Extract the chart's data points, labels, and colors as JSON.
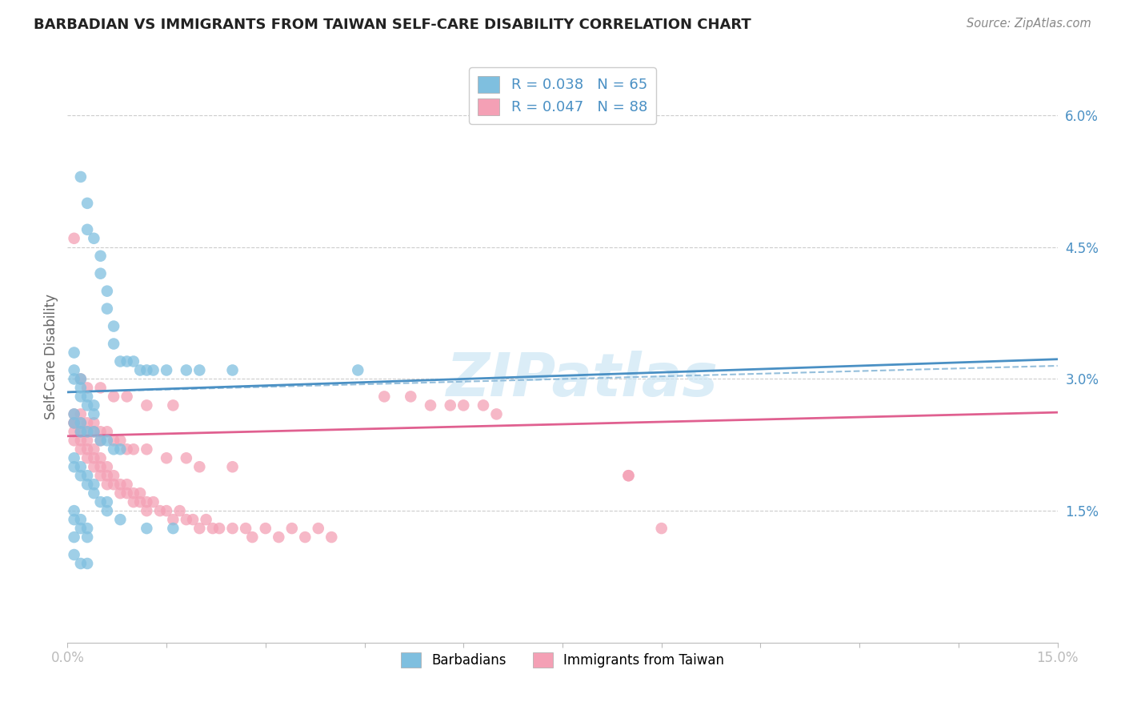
{
  "title": "BARBADIAN VS IMMIGRANTS FROM TAIWAN SELF-CARE DISABILITY CORRELATION CHART",
  "source": "Source: ZipAtlas.com",
  "ylabel": "Self-Care Disability",
  "right_yticks": [
    "6.0%",
    "4.5%",
    "3.0%",
    "1.5%"
  ],
  "right_ytick_vals": [
    0.06,
    0.045,
    0.03,
    0.015
  ],
  "legend_label1": "R = 0.038   N = 65",
  "legend_label2": "R = 0.047   N = 88",
  "color_blue": "#7fbfdf",
  "color_pink": "#f4a0b5",
  "line_blue": "#4a90c4",
  "line_pink": "#e06090",
  "line_dashed_color": "#8ab8d8",
  "text_color_blue": "#4a90c4",
  "background": "#ffffff",
  "xlim": [
    0.0,
    0.15
  ],
  "ylim": [
    0.0,
    0.065
  ],
  "barbadian_x": [
    0.002,
    0.003,
    0.003,
    0.004,
    0.005,
    0.005,
    0.006,
    0.006,
    0.007,
    0.007,
    0.008,
    0.009,
    0.01,
    0.011,
    0.012,
    0.013,
    0.015,
    0.018,
    0.02,
    0.025,
    0.001,
    0.001,
    0.001,
    0.002,
    0.002,
    0.002,
    0.003,
    0.003,
    0.004,
    0.004,
    0.001,
    0.001,
    0.002,
    0.002,
    0.003,
    0.004,
    0.005,
    0.006,
    0.007,
    0.008,
    0.001,
    0.001,
    0.002,
    0.002,
    0.003,
    0.003,
    0.004,
    0.004,
    0.005,
    0.006,
    0.001,
    0.001,
    0.002,
    0.002,
    0.003,
    0.003,
    0.001,
    0.001,
    0.002,
    0.003,
    0.044,
    0.006,
    0.008,
    0.012,
    0.016
  ],
  "barbadian_y": [
    0.053,
    0.05,
    0.047,
    0.046,
    0.044,
    0.042,
    0.04,
    0.038,
    0.036,
    0.034,
    0.032,
    0.032,
    0.032,
    0.031,
    0.031,
    0.031,
    0.031,
    0.031,
    0.031,
    0.031,
    0.033,
    0.031,
    0.03,
    0.03,
    0.029,
    0.028,
    0.028,
    0.027,
    0.027,
    0.026,
    0.026,
    0.025,
    0.025,
    0.024,
    0.024,
    0.024,
    0.023,
    0.023,
    0.022,
    0.022,
    0.021,
    0.02,
    0.02,
    0.019,
    0.019,
    0.018,
    0.018,
    0.017,
    0.016,
    0.016,
    0.015,
    0.014,
    0.014,
    0.013,
    0.013,
    0.012,
    0.012,
    0.01,
    0.009,
    0.009,
    0.031,
    0.015,
    0.014,
    0.013,
    0.013
  ],
  "taiwan_x": [
    0.001,
    0.001,
    0.001,
    0.002,
    0.002,
    0.002,
    0.003,
    0.003,
    0.003,
    0.004,
    0.004,
    0.004,
    0.005,
    0.005,
    0.005,
    0.006,
    0.006,
    0.006,
    0.007,
    0.007,
    0.008,
    0.008,
    0.009,
    0.009,
    0.01,
    0.01,
    0.011,
    0.011,
    0.012,
    0.012,
    0.013,
    0.014,
    0.015,
    0.016,
    0.017,
    0.018,
    0.019,
    0.02,
    0.021,
    0.022,
    0.023,
    0.025,
    0.027,
    0.028,
    0.03,
    0.032,
    0.034,
    0.036,
    0.038,
    0.04,
    0.001,
    0.001,
    0.002,
    0.002,
    0.003,
    0.003,
    0.004,
    0.004,
    0.005,
    0.005,
    0.006,
    0.007,
    0.008,
    0.009,
    0.01,
    0.012,
    0.015,
    0.018,
    0.02,
    0.025,
    0.048,
    0.052,
    0.055,
    0.058,
    0.06,
    0.063,
    0.065,
    0.085,
    0.09,
    0.085,
    0.001,
    0.002,
    0.003,
    0.005,
    0.007,
    0.009,
    0.012,
    0.016
  ],
  "taiwan_y": [
    0.025,
    0.024,
    0.023,
    0.024,
    0.023,
    0.022,
    0.023,
    0.022,
    0.021,
    0.022,
    0.021,
    0.02,
    0.021,
    0.02,
    0.019,
    0.02,
    0.019,
    0.018,
    0.019,
    0.018,
    0.018,
    0.017,
    0.018,
    0.017,
    0.017,
    0.016,
    0.017,
    0.016,
    0.016,
    0.015,
    0.016,
    0.015,
    0.015,
    0.014,
    0.015,
    0.014,
    0.014,
    0.013,
    0.014,
    0.013,
    0.013,
    0.013,
    0.013,
    0.012,
    0.013,
    0.012,
    0.013,
    0.012,
    0.013,
    0.012,
    0.026,
    0.025,
    0.026,
    0.025,
    0.025,
    0.024,
    0.025,
    0.024,
    0.024,
    0.023,
    0.024,
    0.023,
    0.023,
    0.022,
    0.022,
    0.022,
    0.021,
    0.021,
    0.02,
    0.02,
    0.028,
    0.028,
    0.027,
    0.027,
    0.027,
    0.027,
    0.026,
    0.019,
    0.013,
    0.019,
    0.046,
    0.03,
    0.029,
    0.029,
    0.028,
    0.028,
    0.027,
    0.027
  ]
}
